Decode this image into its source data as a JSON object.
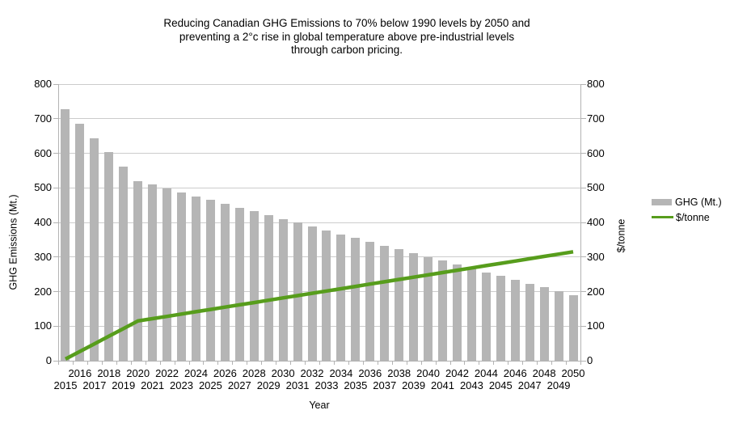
{
  "title": {
    "line1": "Reducing Canadian GHG Emissions to 70% below 1990 levels by 2050 and",
    "line2": "preventing a 2°c rise in global temperature above pre-industrial levels",
    "line3": "through carbon pricing."
  },
  "axes": {
    "left_label": "GHG Emissions (Mt.)",
    "right_label": "$/tonne",
    "x_label": "Year"
  },
  "legend": {
    "items": [
      {
        "label": "GHG (Mt.)",
        "type": "bar",
        "color": "#b5b5b5"
      },
      {
        "label": "$/tonne",
        "type": "line",
        "color": "#579d1c"
      }
    ],
    "position": "right"
  },
  "colors": {
    "bar": "#b5b5b5",
    "line": "#579d1c",
    "gridline": "#cccccc",
    "axis": "#b3b3b3",
    "text": "#000000",
    "background": "#ffffff"
  },
  "chart_data": {
    "type": "bar+line",
    "title": "Reducing Canadian GHG Emissions to 70% below 1990 levels by 2050 and preventing a 2°c rise in global temperature above pre-industrial levels through carbon pricing.",
    "xlabel": "Year",
    "ylabel_left": "GHG Emissions (Mt.)",
    "ylabel_right": "$/tonne",
    "ylim": [
      0,
      800
    ],
    "y_ticks": [
      0,
      100,
      200,
      300,
      400,
      500,
      600,
      700,
      800
    ],
    "grid": true,
    "legend_position": "right",
    "x": [
      2015,
      2016,
      2017,
      2018,
      2019,
      2020,
      2021,
      2022,
      2023,
      2024,
      2025,
      2026,
      2027,
      2028,
      2029,
      2030,
      2031,
      2032,
      2033,
      2034,
      2035,
      2036,
      2037,
      2038,
      2039,
      2040,
      2041,
      2042,
      2043,
      2044,
      2045,
      2046,
      2047,
      2048,
      2049,
      2050
    ],
    "series": [
      {
        "name": "GHG (Mt.)",
        "type": "bar",
        "axis": "left",
        "color": "#b5b5b5",
        "values": [
          727,
          685.6,
          644.2,
          602.8,
          561.4,
          520,
          509,
          498,
          487,
          476,
          465,
          454,
          443,
          432,
          421,
          410,
          399,
          388,
          377,
          366,
          355,
          344,
          333,
          322,
          311,
          300,
          289,
          278,
          267,
          256,
          245,
          234,
          223,
          212,
          201,
          190
        ]
      },
      {
        "name": "$/tonne",
        "type": "line",
        "axis": "right",
        "color": "#579d1c",
        "values": [
          5,
          27,
          49,
          71,
          93,
          115,
          121.7,
          128.3,
          135,
          141.7,
          148.3,
          155,
          161.7,
          168.3,
          175,
          181.7,
          188.3,
          195,
          201.7,
          208.3,
          215,
          221.7,
          228.3,
          235,
          241.7,
          248.3,
          255,
          261.7,
          268.3,
          275,
          281.7,
          288.3,
          295,
          301.7,
          308.3,
          315
        ]
      }
    ]
  }
}
